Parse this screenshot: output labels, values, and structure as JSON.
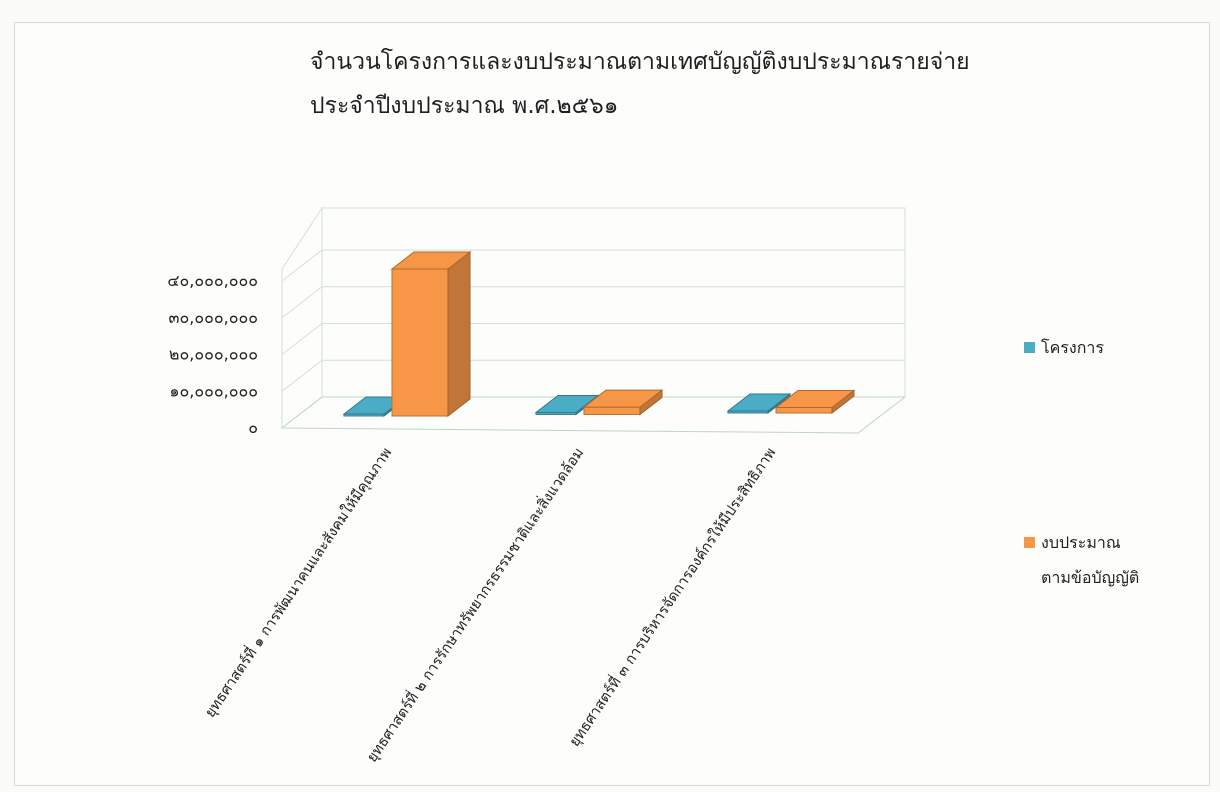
{
  "chart_data": {
    "type": "bar",
    "title": "จำนวนโครงการและงบประมาณตามเทศบัญญัติงบประมาณรายจ่าย",
    "subtitle": "ประจำปีงบประมาณ  พ.ศ.๒๕๖๑",
    "categories": [
      "ยุทธศาสตร์ที่  ๑  การพัฒนาคนและสังคมให้มีคุณภาพ",
      "ยุทธศาสตร์ที่  ๒  การรักษาทรัพยากรธรรมชาติและสิ่งแวดล้อม",
      "ยุทธศาสตร์ที่  ๓  การบริหารจัดการองค์กรให้มีประสิทธิภาพ"
    ],
    "series": [
      {
        "name": "โครงการ",
        "values": [
          40,
          15,
          20
        ],
        "color": "#4bacc6"
      },
      {
        "name": "งบประมาณตามข้อบัญญัติ",
        "values": [
          40000000,
          2000000,
          1500000
        ],
        "color": "#f79646"
      }
    ],
    "ylim": [
      0,
      40000000
    ],
    "y_ticks": [
      "๐",
      "๑๐,๐๐๐,๐๐๐",
      "๒๐,๐๐๐,๐๐๐",
      "๓๐,๐๐๐,๐๐๐",
      "๔๐,๐๐๐,๐๐๐"
    ],
    "legend": {
      "position": "right",
      "items": [
        {
          "label": "โครงการ"
        },
        {
          "label": "งบประมาณ",
          "label2": "ตามข้อบัญญัติ"
        }
      ]
    },
    "grid": true
  }
}
